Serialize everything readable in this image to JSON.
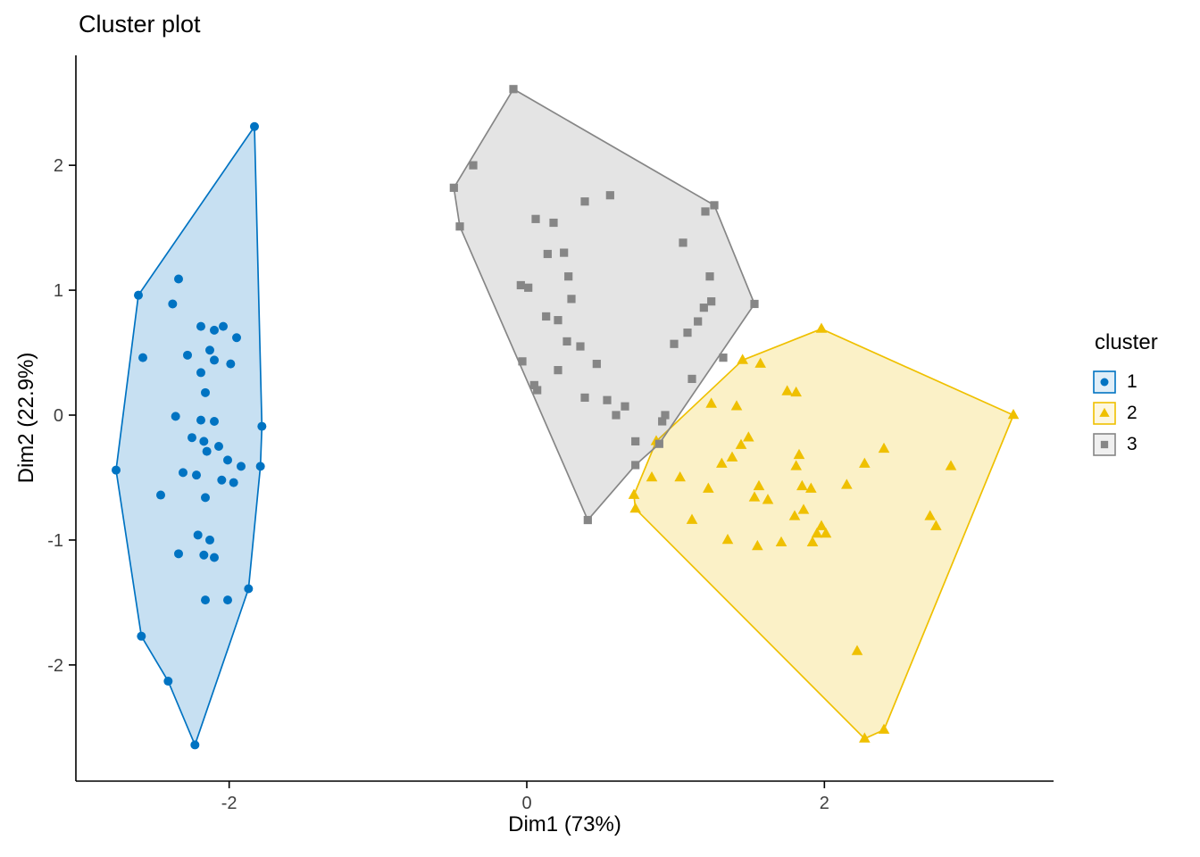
{
  "chart_data": {
    "type": "scatter",
    "title": "Cluster plot",
    "xlabel": "Dim1 (73%)",
    "ylabel": "Dim2 (22.9%)",
    "xlim": [
      -3.03,
      3.54
    ],
    "ylim": [
      -2.93,
      2.88
    ],
    "xticks": [
      -2,
      0,
      2
    ],
    "yticks": [
      -2,
      -1,
      0,
      1,
      2
    ],
    "grid": false,
    "legend_position": "right",
    "series": [
      {
        "name": "1",
        "shape": "circle",
        "color": "#0073C2",
        "hull": [
          [
            -1.83,
            2.31
          ],
          [
            -2.61,
            0.96
          ],
          [
            -2.76,
            -0.44
          ],
          [
            -2.59,
            -1.77
          ],
          [
            -2.41,
            -2.13
          ],
          [
            -2.23,
            -2.64
          ],
          [
            -1.87,
            -1.39
          ],
          [
            -1.79,
            -0.41
          ],
          [
            -1.78,
            -0.09
          ]
        ],
        "points": [
          [
            -2.34,
            1.09
          ],
          [
            -2.38,
            0.89
          ],
          [
            -2.61,
            0.96
          ],
          [
            -1.83,
            2.31
          ],
          [
            -2.19,
            0.71
          ],
          [
            -2.1,
            0.68
          ],
          [
            -2.04,
            0.71
          ],
          [
            -1.95,
            0.62
          ],
          [
            -2.28,
            0.48
          ],
          [
            -2.13,
            0.52
          ],
          [
            -2.1,
            0.44
          ],
          [
            -2.19,
            0.34
          ],
          [
            -1.99,
            0.41
          ],
          [
            -2.58,
            0.46
          ],
          [
            -2.16,
            0.18
          ],
          [
            -2.36,
            -0.01
          ],
          [
            -2.19,
            -0.04
          ],
          [
            -2.1,
            -0.05
          ],
          [
            -1.78,
            -0.09
          ],
          [
            -2.25,
            -0.18
          ],
          [
            -2.17,
            -0.21
          ],
          [
            -2.15,
            -0.29
          ],
          [
            -2.07,
            -0.25
          ],
          [
            -2.01,
            -0.36
          ],
          [
            -1.92,
            -0.41
          ],
          [
            -1.79,
            -0.41
          ],
          [
            -2.76,
            -0.44
          ],
          [
            -2.31,
            -0.46
          ],
          [
            -2.22,
            -0.48
          ],
          [
            -2.05,
            -0.52
          ],
          [
            -1.97,
            -0.54
          ],
          [
            -2.46,
            -0.64
          ],
          [
            -2.16,
            -0.66
          ],
          [
            -2.21,
            -0.96
          ],
          [
            -2.13,
            -1.0
          ],
          [
            -2.34,
            -1.11
          ],
          [
            -2.17,
            -1.12
          ],
          [
            -2.1,
            -1.14
          ],
          [
            -1.87,
            -1.39
          ],
          [
            -2.16,
            -1.48
          ],
          [
            -2.01,
            -1.48
          ],
          [
            -2.59,
            -1.77
          ],
          [
            -2.41,
            -2.13
          ],
          [
            -2.23,
            -2.64
          ]
        ]
      },
      {
        "name": "2",
        "shape": "triangle",
        "color": "#EFC000",
        "hull": [
          [
            1.98,
            0.69
          ],
          [
            1.45,
            0.44
          ],
          [
            0.87,
            -0.21
          ],
          [
            0.72,
            -0.64
          ],
          [
            0.73,
            -0.75
          ],
          [
            2.27,
            -2.59
          ],
          [
            2.4,
            -2.52
          ],
          [
            3.27,
            0.0
          ]
        ],
        "points": [
          [
            1.98,
            0.69
          ],
          [
            1.45,
            0.44
          ],
          [
            1.57,
            0.41
          ],
          [
            1.75,
            0.19
          ],
          [
            1.81,
            0.18
          ],
          [
            1.24,
            0.09
          ],
          [
            1.41,
            0.07
          ],
          [
            3.27,
            0.0
          ],
          [
            0.87,
            -0.21
          ],
          [
            1.44,
            -0.24
          ],
          [
            1.49,
            -0.18
          ],
          [
            2.4,
            -0.27
          ],
          [
            1.83,
            -0.32
          ],
          [
            1.31,
            -0.39
          ],
          [
            1.38,
            -0.34
          ],
          [
            1.81,
            -0.41
          ],
          [
            2.27,
            -0.39
          ],
          [
            2.85,
            -0.41
          ],
          [
            0.84,
            -0.5
          ],
          [
            1.03,
            -0.5
          ],
          [
            1.22,
            -0.59
          ],
          [
            1.56,
            -0.57
          ],
          [
            1.85,
            -0.57
          ],
          [
            1.91,
            -0.59
          ],
          [
            2.15,
            -0.56
          ],
          [
            0.72,
            -0.64
          ],
          [
            1.53,
            -0.66
          ],
          [
            1.62,
            -0.68
          ],
          [
            1.8,
            -0.81
          ],
          [
            1.86,
            -0.76
          ],
          [
            0.73,
            -0.75
          ],
          [
            1.11,
            -0.84
          ],
          [
            2.71,
            -0.81
          ],
          [
            2.75,
            -0.89
          ],
          [
            1.98,
            -0.89
          ],
          [
            2.01,
            -0.95
          ],
          [
            1.35,
            -1.0
          ],
          [
            1.55,
            -1.05
          ],
          [
            1.71,
            -1.02
          ],
          [
            1.92,
            -1.02
          ],
          [
            1.95,
            -0.95
          ],
          [
            2.22,
            -1.89
          ],
          [
            2.27,
            -2.59
          ],
          [
            2.4,
            -2.52
          ]
        ]
      },
      {
        "name": "3",
        "shape": "square",
        "color": "#868686",
        "hull": [
          [
            -0.09,
            2.61
          ],
          [
            -0.49,
            1.82
          ],
          [
            -0.45,
            1.51
          ],
          [
            0.41,
            -0.84
          ],
          [
            0.73,
            -0.4
          ],
          [
            0.89,
            -0.23
          ],
          [
            1.53,
            0.89
          ],
          [
            1.26,
            1.68
          ]
        ],
        "points": [
          [
            -0.36,
            2.0
          ],
          [
            -0.09,
            2.61
          ],
          [
            -0.49,
            1.82
          ],
          [
            -0.45,
            1.51
          ],
          [
            0.06,
            1.57
          ],
          [
            0.18,
            1.54
          ],
          [
            0.39,
            1.71
          ],
          [
            0.56,
            1.76
          ],
          [
            0.14,
            1.29
          ],
          [
            0.25,
            1.3
          ],
          [
            1.2,
            1.63
          ],
          [
            1.26,
            1.68
          ],
          [
            1.05,
            1.38
          ],
          [
            -0.04,
            1.04
          ],
          [
            0.01,
            1.02
          ],
          [
            0.28,
            1.11
          ],
          [
            0.3,
            0.93
          ],
          [
            1.23,
            1.11
          ],
          [
            1.24,
            0.91
          ],
          [
            1.53,
            0.89
          ],
          [
            0.13,
            0.79
          ],
          [
            0.21,
            0.76
          ],
          [
            1.19,
            0.86
          ],
          [
            1.15,
            0.75
          ],
          [
            0.27,
            0.59
          ],
          [
            0.36,
            0.55
          ],
          [
            0.99,
            0.57
          ],
          [
            1.08,
            0.66
          ],
          [
            -0.03,
            0.43
          ],
          [
            0.21,
            0.36
          ],
          [
            0.47,
            0.41
          ],
          [
            0.05,
            0.24
          ],
          [
            0.07,
            0.2
          ],
          [
            0.39,
            0.14
          ],
          [
            0.54,
            0.12
          ],
          [
            0.66,
            0.07
          ],
          [
            0.6,
            0.0
          ],
          [
            1.11,
            0.29
          ],
          [
            1.32,
            0.46
          ],
          [
            0.93,
            0.0
          ],
          [
            0.91,
            -0.05
          ],
          [
            0.73,
            -0.21
          ],
          [
            0.89,
            -0.23
          ],
          [
            0.73,
            -0.4
          ],
          [
            0.41,
            -0.84
          ]
        ]
      }
    ]
  },
  "legend": {
    "title": "cluster",
    "entries": [
      {
        "label": "1",
        "shape": "circle",
        "color": "#0073C2"
      },
      {
        "label": "2",
        "shape": "triangle",
        "color": "#EFC000"
      },
      {
        "label": "3",
        "shape": "square",
        "color": "#868686"
      }
    ]
  },
  "style": {
    "hull_fill_opacity": 0.22,
    "axis_color": "#000000",
    "tick_label_color": "#404040",
    "background": "#ffffff"
  }
}
